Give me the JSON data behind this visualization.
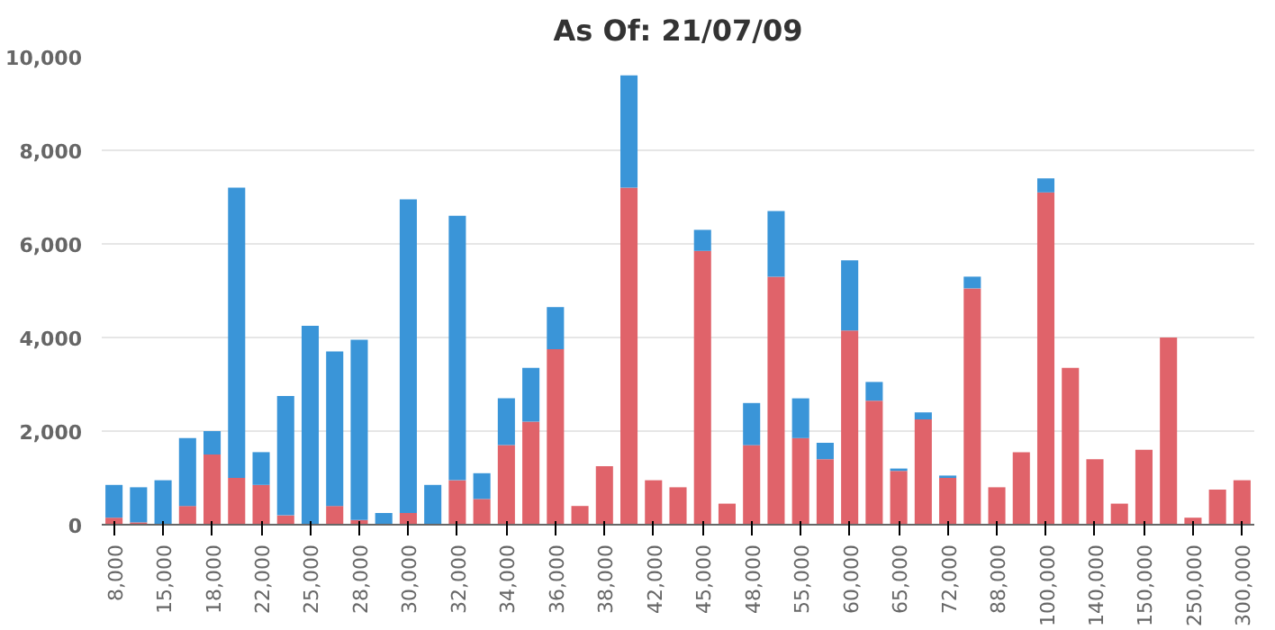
{
  "chart_data": {
    "type": "bar",
    "title": "As Of: 21/07/09",
    "stacked": true,
    "grid": "y",
    "categories": [
      "8,000",
      null,
      "15,000",
      null,
      "18,000",
      null,
      "22,000",
      null,
      "25,000",
      null,
      "28,000",
      null,
      "30,000",
      null,
      "32,000",
      null,
      "34,000",
      null,
      "36,000",
      null,
      "38,000",
      null,
      "42,000",
      null,
      "45,000",
      null,
      "48,000",
      null,
      "55,000",
      null,
      "60,000",
      null,
      "65,000",
      null,
      "72,000",
      null,
      "88,000",
      null,
      "100,000",
      null,
      "140,000",
      null,
      "150,000",
      null,
      "250,000",
      null,
      "300,000"
    ],
    "ylim": [
      0,
      10000
    ],
    "yticks": [
      {
        "value": 0,
        "label": "0"
      },
      {
        "value": 2000,
        "label": "2,000"
      },
      {
        "value": 4000,
        "label": "4,000"
      },
      {
        "value": 6000,
        "label": "6,000"
      },
      {
        "value": 8000,
        "label": "8,000"
      },
      {
        "value": 10000,
        "label": "10,000"
      }
    ],
    "series": [
      {
        "color": "#e0636a",
        "values": [
          150,
          50,
          0,
          400,
          1500,
          1000,
          850,
          200,
          0,
          400,
          100,
          0,
          250,
          0,
          950,
          550,
          1700,
          2200,
          3750,
          400,
          1250,
          7200,
          950,
          800,
          5850,
          450,
          1700,
          5300,
          1850,
          1400,
          4150,
          2650,
          1150,
          2250,
          1000,
          5050,
          800,
          1550,
          7100,
          3350,
          1400,
          450,
          1600,
          4000,
          150,
          750,
          950
        ]
      },
      {
        "color": "#3a95d8",
        "values": [
          700,
          750,
          950,
          1450,
          500,
          6200,
          700,
          2550,
          4250,
          3300,
          3850,
          250,
          6700,
          850,
          5650,
          550,
          1000,
          1150,
          900,
          0,
          0,
          2400,
          0,
          0,
          450,
          0,
          900,
          1400,
          850,
          350,
          1500,
          400,
          50,
          150,
          50,
          250,
          0,
          0,
          300,
          0,
          0,
          0,
          0,
          0,
          0,
          0,
          0
        ]
      }
    ]
  }
}
